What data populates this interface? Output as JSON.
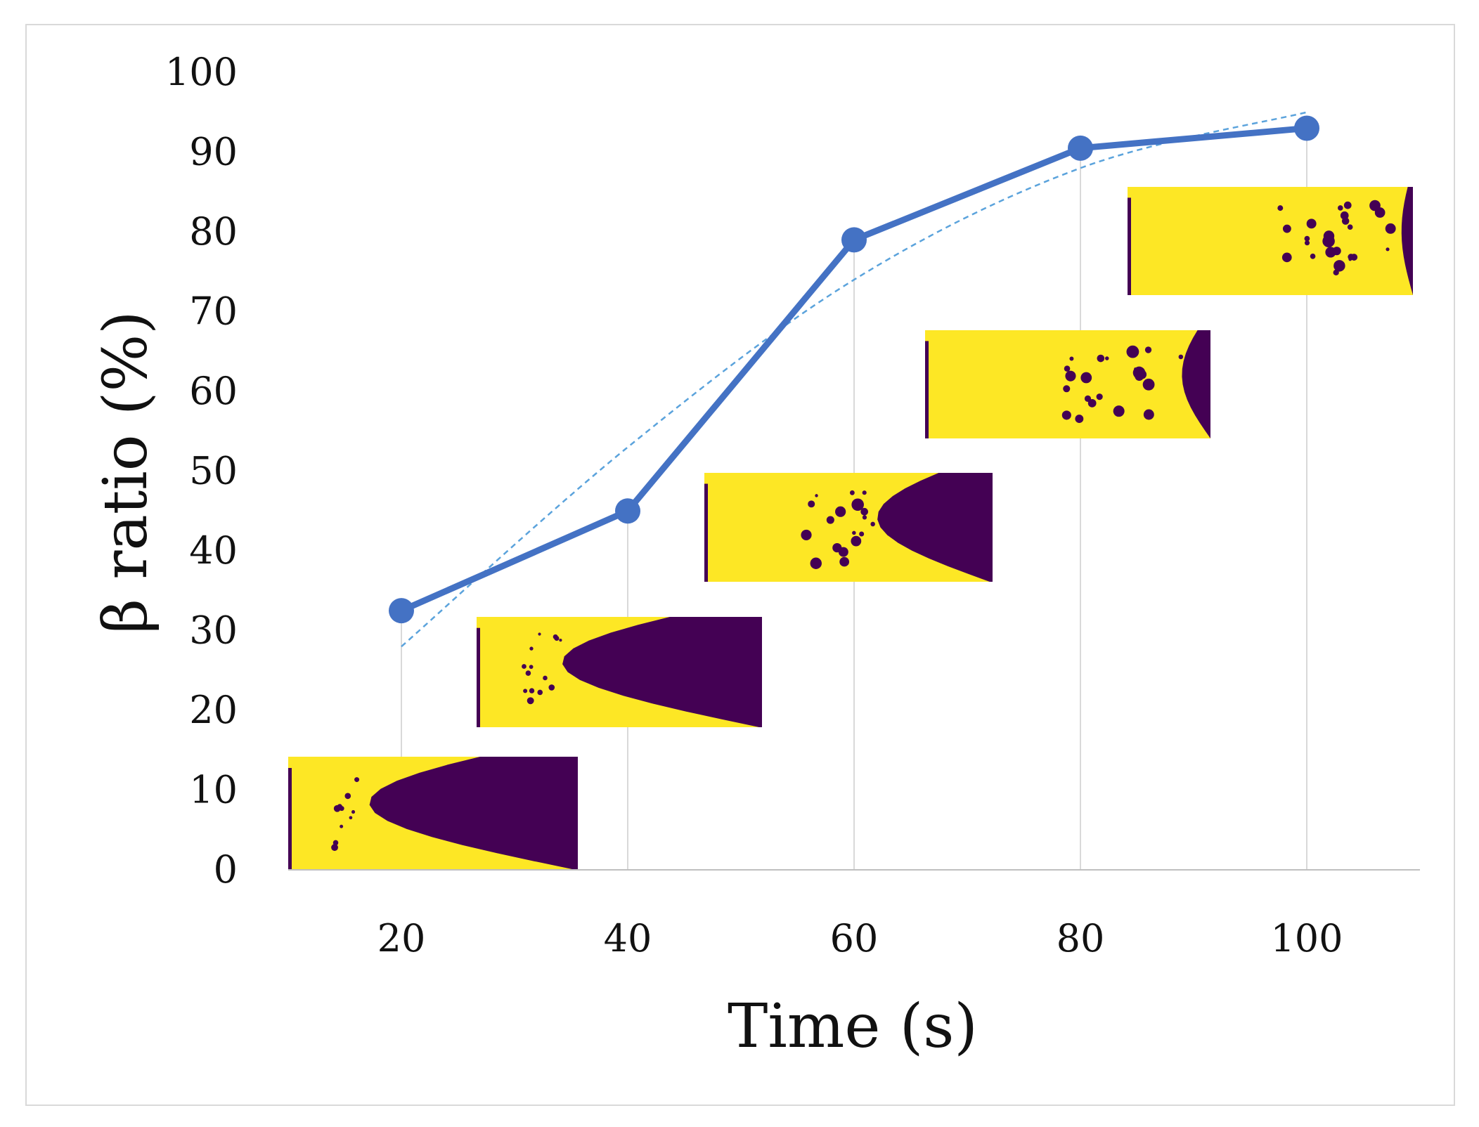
{
  "chart_data": {
    "type": "line",
    "title": "",
    "xlabel": "Time (s)",
    "ylabel": "β ratio (%)",
    "x": [
      20,
      40,
      60,
      80,
      100
    ],
    "series": [
      {
        "values": [
          32.5,
          45,
          79,
          90.5,
          93
        ],
        "color": "#4472c4",
        "marker": "circle"
      }
    ],
    "trendline": {
      "style": "dashed",
      "color": "#5ba3dc",
      "x": [
        20,
        40,
        60,
        80,
        100
      ],
      "values": [
        28,
        53,
        74,
        88,
        95
      ]
    },
    "xticks": [
      "20",
      "40",
      "60",
      "80",
      "100"
    ],
    "yticks": [
      "0",
      "10",
      "20",
      "30",
      "40",
      "50",
      "60",
      "70",
      "80",
      "90",
      "100"
    ],
    "xlim": [
      10,
      110
    ],
    "ylim": [
      0,
      100
    ],
    "grid": {
      "vertical_at_data_points": true,
      "horizontal": false
    },
    "legend": "none",
    "inset_images": [
      {
        "label": "t = 20 s phase map",
        "colors": {
          "phase_a": "#fde725",
          "phase_b": "#440154"
        }
      },
      {
        "label": "t = 40 s phase map",
        "colors": {
          "phase_a": "#fde725",
          "phase_b": "#440154"
        }
      },
      {
        "label": "t = 60 s phase map",
        "colors": {
          "phase_a": "#fde725",
          "phase_b": "#440154"
        }
      },
      {
        "label": "t = 80 s phase map",
        "colors": {
          "phase_a": "#fde725",
          "phase_b": "#440154"
        }
      },
      {
        "label": "t = 100 s phase map",
        "colors": {
          "phase_a": "#fde725",
          "phase_b": "#440154"
        }
      }
    ]
  }
}
